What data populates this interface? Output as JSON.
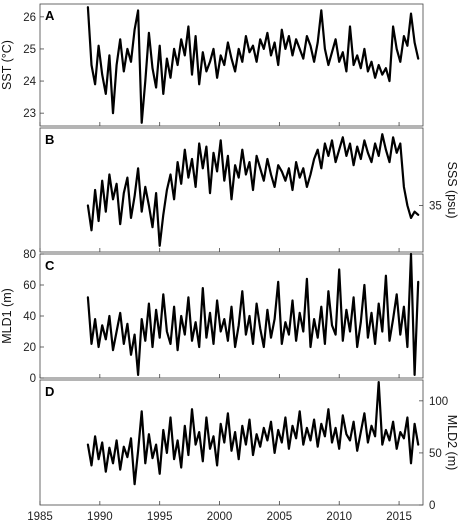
{
  "chart_data": [
    {
      "type": "line",
      "panel": "A",
      "ylabel": "SST (°C)",
      "yaxis": "left",
      "ylim": [
        22.6,
        26.4
      ],
      "yticks": [
        "23",
        "24",
        "25",
        "26"
      ],
      "xlim": [
        1985,
        2017
      ],
      "series": [
        {
          "x": [
            1989,
            1989.3,
            1989.6,
            1989.9,
            1990.2,
            1990.5,
            1990.8,
            1991.1,
            1991.4,
            1991.7,
            1992,
            1992.3,
            1992.6,
            1992.9,
            1993.2,
            1993.5,
            1993.8,
            1994.1,
            1994.4,
            1994.7,
            1995,
            1995.3,
            1995.6,
            1995.9,
            1996.2,
            1996.5,
            1996.8,
            1997.1,
            1997.4,
            1997.7,
            1998,
            1998.3,
            1998.6,
            1998.9,
            1999.2,
            1999.5,
            1999.8,
            2000.1,
            2000.4,
            2000.7,
            2001,
            2001.3,
            2001.6,
            2001.9,
            2002.2,
            2002.5,
            2002.8,
            2003.1,
            2003.4,
            2003.7,
            2004,
            2004.3,
            2004.6,
            2004.9,
            2005.2,
            2005.5,
            2005.8,
            2006.1,
            2006.4,
            2006.7,
            2007,
            2007.3,
            2007.6,
            2007.9,
            2008.2,
            2008.5,
            2008.8,
            2009.1,
            2009.4,
            2009.7,
            2010,
            2010.3,
            2010.6,
            2010.9,
            2011.2,
            2011.5,
            2011.8,
            2012.1,
            2012.4,
            2012.7,
            2013,
            2013.3,
            2013.6,
            2013.9,
            2014.2,
            2014.5,
            2014.8,
            2015.1,
            2015.4,
            2015.7,
            2016,
            2016.3,
            2016.6
          ],
          "y": [
            26.3,
            24.5,
            23.9,
            25.1,
            24.2,
            23.6,
            24.8,
            23.0,
            24.5,
            25.3,
            24.3,
            25.0,
            24.6,
            25.6,
            26.2,
            22.7,
            24.0,
            25.5,
            24.4,
            23.8,
            25.1,
            23.6,
            24.7,
            24.1,
            25.0,
            24.5,
            25.3,
            24.8,
            25.7,
            24.2,
            25.4,
            23.9,
            24.9,
            24.3,
            24.6,
            25.0,
            24.1,
            24.8,
            24.5,
            25.2,
            24.7,
            24.3,
            25.0,
            24.6,
            25.4,
            24.9,
            25.1,
            24.6,
            25.3,
            25.0,
            25.5,
            24.8,
            25.2,
            24.5,
            25.6,
            25.0,
            25.4,
            24.8,
            25.3,
            25.0,
            24.7,
            25.4,
            25.1,
            24.6,
            25.2,
            26.2,
            25.0,
            24.5,
            24.9,
            25.3,
            24.6,
            24.9,
            24.3,
            25.7,
            24.5,
            24.8,
            24.4,
            25.0,
            24.3,
            24.6,
            24.1,
            24.5,
            24.2,
            24.4,
            24.0,
            25.7,
            25.0,
            24.6,
            25.4,
            25.1,
            26.1,
            25.2,
            24.7
          ]
        }
      ]
    },
    {
      "type": "line",
      "panel": "B",
      "ylabel": "SSS (psu)",
      "yaxis": "right",
      "ylim": [
        34.85,
        35.25
      ],
      "yticks": [
        "35"
      ],
      "ytick_values": [
        35
      ],
      "xlim": [
        1985,
        2017
      ],
      "series": [
        {
          "x": [
            1989,
            1989.3,
            1989.6,
            1989.9,
            1990.2,
            1990.5,
            1990.8,
            1991.1,
            1991.4,
            1991.7,
            1992,
            1992.3,
            1992.6,
            1992.9,
            1993.2,
            1993.5,
            1993.8,
            1994.1,
            1994.4,
            1994.7,
            1995,
            1995.3,
            1995.6,
            1995.9,
            1996.2,
            1996.5,
            1996.8,
            1997.1,
            1997.4,
            1997.7,
            1998,
            1998.3,
            1998.6,
            1998.9,
            1999.2,
            1999.5,
            1999.8,
            2000.1,
            2000.4,
            2000.7,
            2001,
            2001.3,
            2001.6,
            2001.9,
            2002.2,
            2002.5,
            2002.8,
            2003.1,
            2003.4,
            2003.7,
            2004,
            2004.3,
            2004.6,
            2004.9,
            2005.2,
            2005.5,
            2005.8,
            2006.1,
            2006.4,
            2006.7,
            2007,
            2007.3,
            2007.6,
            2007.9,
            2008.2,
            2008.5,
            2008.8,
            2009.1,
            2009.4,
            2009.7,
            2010,
            2010.3,
            2010.6,
            2010.9,
            2011.2,
            2011.5,
            2011.8,
            2012.1,
            2012.4,
            2012.7,
            2013,
            2013.3,
            2013.6,
            2013.9,
            2014.2,
            2014.5,
            2014.8,
            2015.1,
            2015.4,
            2015.7,
            2016,
            2016.3,
            2016.6
          ],
          "y": [
            35.0,
            34.92,
            35.05,
            34.95,
            35.08,
            34.98,
            35.1,
            35.02,
            35.07,
            34.94,
            35.04,
            35.09,
            34.96,
            35.03,
            35.12,
            34.98,
            35.06,
            35.0,
            34.93,
            35.04,
            34.87,
            34.97,
            35.05,
            35.1,
            35.02,
            35.14,
            35.07,
            35.18,
            35.09,
            35.15,
            35.06,
            35.2,
            35.12,
            35.19,
            35.04,
            35.17,
            35.11,
            35.21,
            35.08,
            35.16,
            35.02,
            35.13,
            35.09,
            35.18,
            35.1,
            35.14,
            35.05,
            35.16,
            35.12,
            35.08,
            35.15,
            35.1,
            35.06,
            35.13,
            35.11,
            35.08,
            35.12,
            35.05,
            35.14,
            35.09,
            35.12,
            35.06,
            35.1,
            35.15,
            35.18,
            35.12,
            35.2,
            35.16,
            35.21,
            35.14,
            35.18,
            35.22,
            35.16,
            35.2,
            35.13,
            35.19,
            35.15,
            35.21,
            35.17,
            35.14,
            35.2,
            35.16,
            35.23,
            35.18,
            35.14,
            35.22,
            35.17,
            35.2,
            35.06,
            35.0,
            34.96,
            34.98,
            34.97
          ]
        }
      ]
    },
    {
      "type": "line",
      "panel": "C",
      "ylabel": "MLD1 (m)",
      "yaxis": "left",
      "ylim": [
        0,
        80
      ],
      "yticks": [
        "0",
        "20",
        "40",
        "60",
        "80"
      ],
      "ytick_values": [
        0,
        20,
        40,
        60,
        80
      ],
      "xlim": [
        1985,
        2017
      ],
      "series": [
        {
          "x": [
            1989,
            1989.3,
            1989.6,
            1989.9,
            1990.2,
            1990.5,
            1990.8,
            1991.1,
            1991.4,
            1991.7,
            1992,
            1992.3,
            1992.6,
            1992.9,
            1993.2,
            1993.5,
            1993.8,
            1994.1,
            1994.4,
            1994.7,
            1995,
            1995.3,
            1995.6,
            1995.9,
            1996.2,
            1996.5,
            1996.8,
            1997.1,
            1997.4,
            1997.7,
            1998,
            1998.3,
            1998.6,
            1998.9,
            1999.2,
            1999.5,
            1999.8,
            2000.1,
            2000.4,
            2000.7,
            2001,
            2001.3,
            2001.6,
            2001.9,
            2002.2,
            2002.5,
            2002.8,
            2003.1,
            2003.4,
            2003.7,
            2004,
            2004.3,
            2004.6,
            2004.9,
            2005.2,
            2005.5,
            2005.8,
            2006.1,
            2006.4,
            2006.7,
            2007,
            2007.3,
            2007.6,
            2007.9,
            2008.2,
            2008.5,
            2008.8,
            2009.1,
            2009.4,
            2009.7,
            2010,
            2010.3,
            2010.6,
            2010.9,
            2011.2,
            2011.5,
            2011.8,
            2012.1,
            2012.4,
            2012.7,
            2013,
            2013.3,
            2013.6,
            2013.9,
            2014.2,
            2014.5,
            2014.8,
            2015.1,
            2015.4,
            2015.7,
            2016,
            2016.3,
            2016.6
          ],
          "y": [
            52,
            22,
            38,
            20,
            34,
            25,
            40,
            18,
            30,
            42,
            22,
            35,
            15,
            28,
            2,
            38,
            24,
            48,
            20,
            44,
            26,
            54,
            30,
            22,
            46,
            18,
            40,
            28,
            52,
            24,
            36,
            20,
            58,
            26,
            42,
            22,
            50,
            30,
            38,
            24,
            46,
            20,
            34,
            56,
            28,
            40,
            22,
            48,
            32,
            20,
            44,
            26,
            38,
            62,
            22,
            36,
            28,
            50,
            24,
            42,
            30,
            64,
            20,
            38,
            26,
            46,
            22,
            56,
            34,
            28,
            70,
            24,
            44,
            30,
            52,
            20,
            36,
            60,
            26,
            42,
            22,
            48,
            30,
            66,
            24,
            38,
            54,
            28,
            46,
            20,
            80,
            2,
            62
          ]
        }
      ]
    },
    {
      "type": "line",
      "panel": "D",
      "ylabel": "MLD2 (m)",
      "yaxis": "right",
      "ylim": [
        0,
        120
      ],
      "yticks": [
        "0",
        "50",
        "100"
      ],
      "ytick_values": [
        0,
        50,
        100
      ],
      "xlim": [
        1985,
        2017
      ],
      "xticks": [
        "1985",
        "1990",
        "1995",
        "2000",
        "2005",
        "2010",
        "2015"
      ],
      "xtick_values": [
        1985,
        1990,
        1995,
        2000,
        2005,
        2010,
        2015
      ],
      "series": [
        {
          "x": [
            1989,
            1989.3,
            1989.6,
            1989.9,
            1990.2,
            1990.5,
            1990.8,
            1991.1,
            1991.4,
            1991.7,
            1992,
            1992.3,
            1992.6,
            1992.9,
            1993.2,
            1993.5,
            1993.8,
            1994.1,
            1994.4,
            1994.7,
            1995,
            1995.3,
            1995.6,
            1995.9,
            1996.2,
            1996.5,
            1996.8,
            1997.1,
            1997.4,
            1997.7,
            1998,
            1998.3,
            1998.6,
            1998.9,
            1999.2,
            1999.5,
            1999.8,
            2000.1,
            2000.4,
            2000.7,
            2001,
            2001.3,
            2001.6,
            2001.9,
            2002.2,
            2002.5,
            2002.8,
            2003.1,
            2003.4,
            2003.7,
            2004,
            2004.3,
            2004.6,
            2004.9,
            2005.2,
            2005.5,
            2005.8,
            2006.1,
            2006.4,
            2006.7,
            2007,
            2007.3,
            2007.6,
            2007.9,
            2008.2,
            2008.5,
            2008.8,
            2009.1,
            2009.4,
            2009.7,
            2010,
            2010.3,
            2010.6,
            2010.9,
            2011.2,
            2011.5,
            2011.8,
            2012.1,
            2012.4,
            2012.7,
            2013,
            2013.3,
            2013.6,
            2013.9,
            2014.2,
            2014.5,
            2014.8,
            2015.1,
            2015.4,
            2015.7,
            2016,
            2016.3,
            2016.6
          ],
          "y": [
            58,
            38,
            66,
            44,
            60,
            32,
            55,
            40,
            62,
            34,
            56,
            46,
            64,
            20,
            52,
            90,
            40,
            68,
            45,
            58,
            30,
            72,
            50,
            84,
            44,
            62,
            36,
            76,
            48,
            92,
            58,
            70,
            42,
            84,
            54,
            66,
            38,
            78,
            60,
            88,
            52,
            70,
            44,
            76,
            58,
            82,
            48,
            68,
            56,
            74,
            62,
            80,
            50,
            72,
            60,
            84,
            54,
            76,
            64,
            90,
            58,
            74,
            62,
            82,
            56,
            78,
            66,
            92,
            60,
            74,
            54,
            86,
            68,
            62,
            80,
            52,
            70,
            88,
            60,
            76,
            66,
            118,
            58,
            72,
            62,
            80,
            54,
            70,
            64,
            84,
            40,
            78,
            58
          ]
        }
      ]
    }
  ]
}
